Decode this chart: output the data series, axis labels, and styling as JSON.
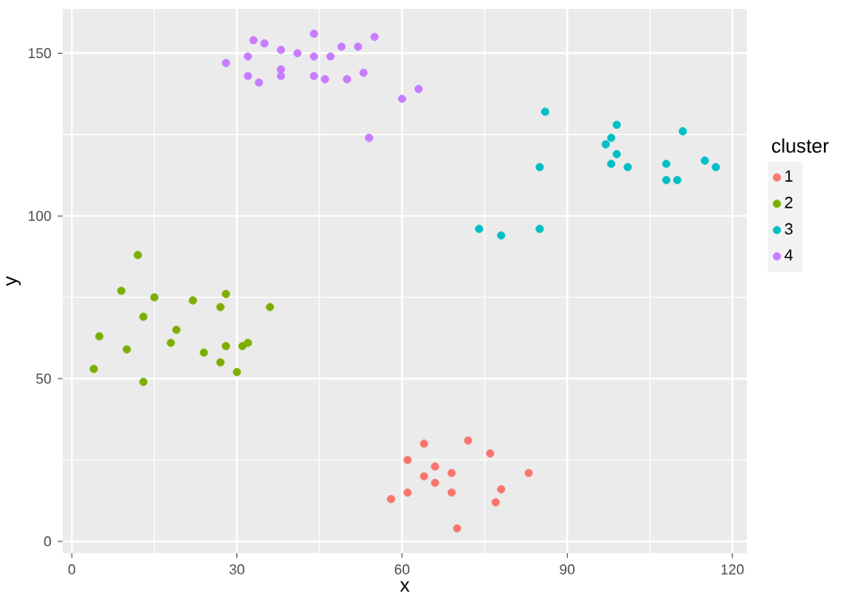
{
  "chart_data": {
    "type": "scatter",
    "xlabel": "x",
    "ylabel": "y",
    "legend_title": "cluster",
    "legend": "right",
    "grid": true,
    "marker": "circle",
    "xlim": [
      -1.65,
      122.65
    ],
    "ylim": [
      -3.6,
      163.6
    ],
    "xticks": [
      0,
      30,
      60,
      90,
      120
    ],
    "yticks": [
      0,
      50,
      100,
      150
    ],
    "series": [
      {
        "name": "1",
        "color": "#F8766D",
        "x": [
          58,
          61,
          61,
          64,
          64,
          66,
          66,
          69,
          69,
          70,
          72,
          76,
          77,
          78,
          83
        ],
        "values": [
          13,
          25,
          15,
          30,
          20,
          23,
          18,
          21,
          15,
          4,
          31,
          27,
          12,
          16,
          21
        ]
      },
      {
        "name": "2",
        "color": "#7CAE00",
        "x": [
          4,
          5,
          9,
          10,
          12,
          13,
          13,
          15,
          18,
          19,
          22,
          24,
          27,
          27,
          28,
          28,
          30,
          31,
          32,
          36
        ],
        "values": [
          53,
          63,
          77,
          59,
          88,
          69,
          49,
          75,
          61,
          65,
          74,
          58,
          72,
          55,
          76,
          60,
          52,
          60,
          61,
          72
        ]
      },
      {
        "name": "3",
        "color": "#00BFC4",
        "x": [
          74,
          78,
          85,
          85,
          86,
          97,
          98,
          98,
          99,
          99,
          101,
          108,
          108,
          110,
          111,
          115,
          117
        ],
        "values": [
          96,
          94,
          115,
          96,
          132,
          122,
          124,
          116,
          128,
          119,
          115,
          116,
          111,
          111,
          126,
          117,
          115
        ]
      },
      {
        "name": "4",
        "color": "#C77CFF",
        "x": [
          28,
          32,
          32,
          33,
          34,
          35,
          38,
          38,
          38,
          41,
          44,
          44,
          44,
          46,
          47,
          49,
          50,
          52,
          53,
          55,
          54,
          60,
          63
        ],
        "values": [
          147,
          149,
          143,
          154,
          141,
          153,
          151,
          145,
          143,
          150,
          156,
          149,
          143,
          142,
          149,
          152,
          142,
          152,
          144,
          155,
          124,
          136,
          139
        ]
      }
    ]
  }
}
